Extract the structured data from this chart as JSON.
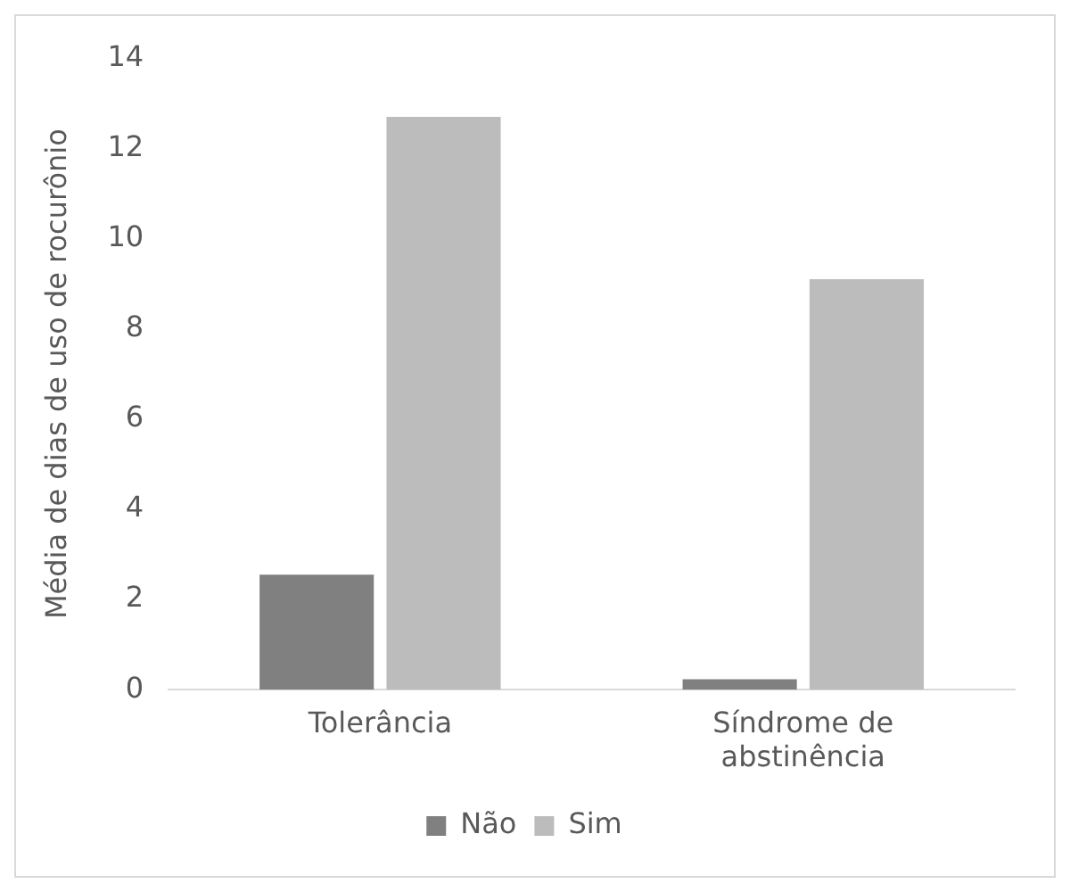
{
  "chart_data": {
    "type": "bar",
    "ylabel": "Média de dias de uso de rocurônio",
    "categories": [
      "Tolerância",
      "Síndrome de abstinência"
    ],
    "series": [
      {
        "name": "Não",
        "color": "#808080",
        "values": [
          2.55,
          0.23
        ]
      },
      {
        "name": "Sim",
        "color": "#bcbcbc",
        "values": [
          12.7,
          9.1
        ]
      }
    ],
    "ylim": [
      0,
      14
    ],
    "yticks": [
      0,
      2,
      4,
      6,
      8,
      10,
      12,
      14
    ],
    "grid": false,
    "legend": "bottom"
  }
}
